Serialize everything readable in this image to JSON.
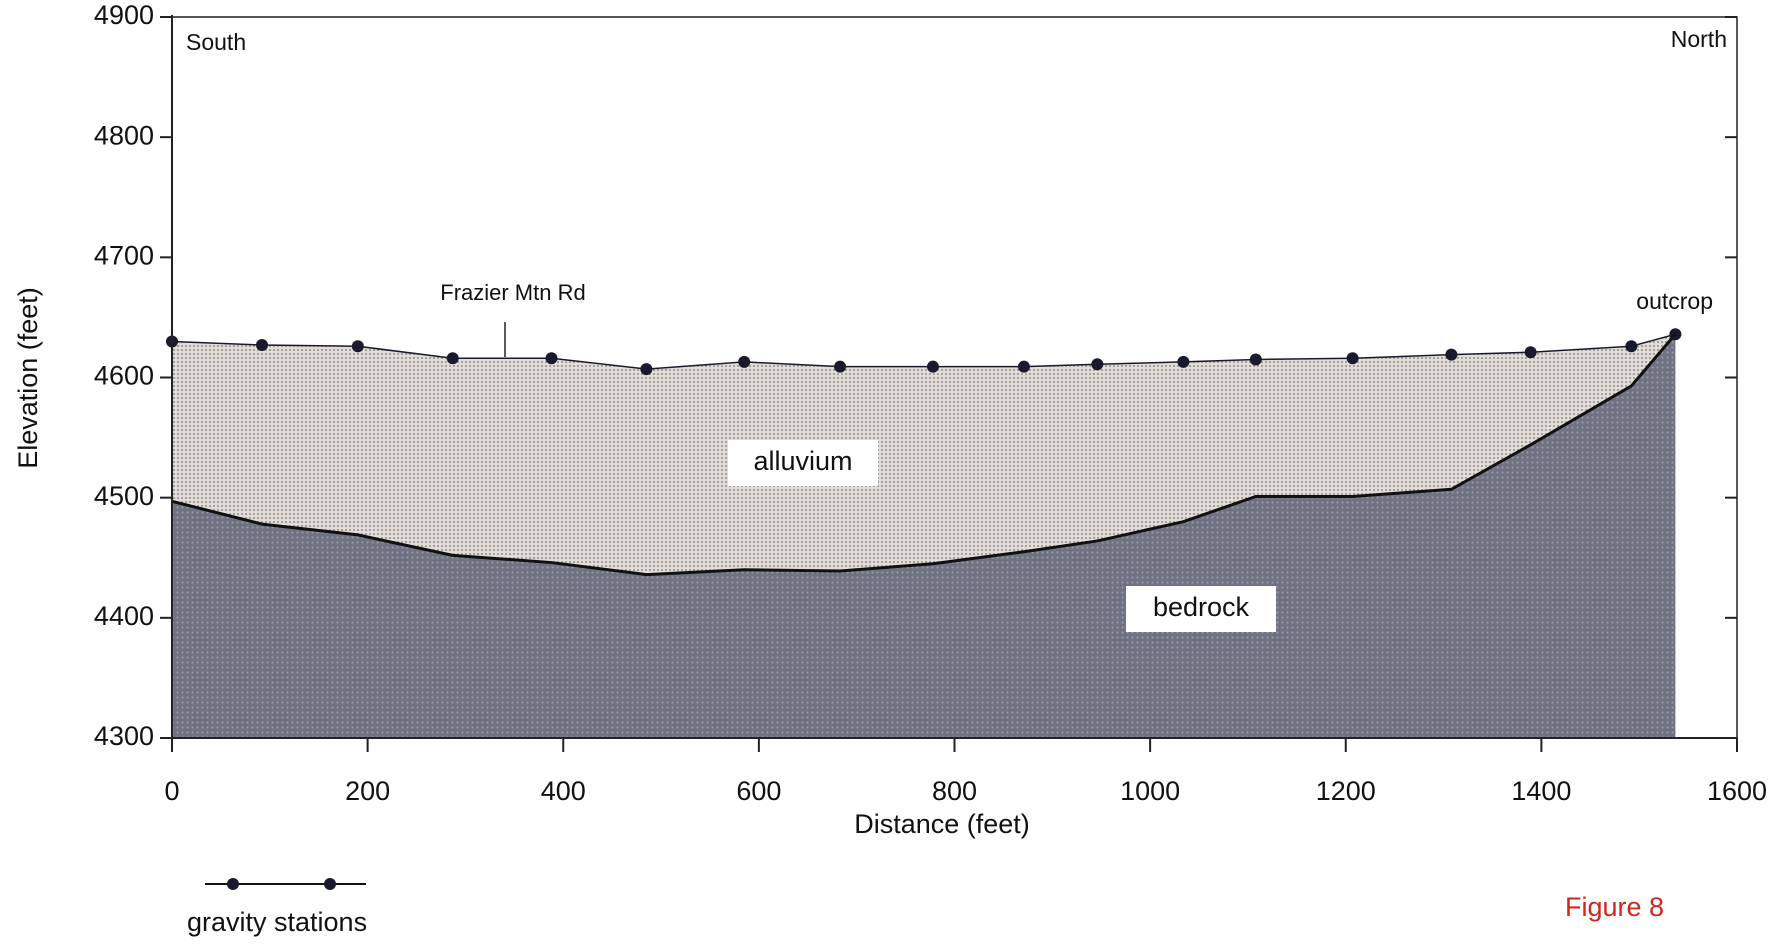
{
  "chart_data": {
    "type": "area",
    "xlabel": "Distance (feet)",
    "ylabel": "Elevation (feet)",
    "x": [
      0,
      92,
      190,
      287,
      388,
      485,
      585,
      683,
      778,
      871,
      946,
      1034,
      1108,
      1207,
      1308,
      1389,
      1492,
      1537
    ],
    "series": [
      {
        "color": "#1a1a2e",
        "fill": "#d9d3cd",
        "markers": true,
        "values": [
          4630,
          4627,
          4626,
          4616,
          4616,
          4607,
          4613,
          4609,
          4609,
          4609,
          4611,
          4613,
          4615,
          4616,
          4619,
          4621,
          4626,
          4636
        ]
      },
      {
        "color": "#111111",
        "fill": "#6d6e7c",
        "values": [
          4497,
          4478,
          4469,
          4452,
          4446,
          4436,
          4440,
          4439,
          4445,
          4455,
          4464,
          4480,
          4501,
          4501,
          4507,
          4544,
          4593,
          4636
        ]
      }
    ],
    "xlim": [
      0,
      1600
    ],
    "xticks": [
      0,
      200,
      400,
      600,
      800,
      1000,
      1200,
      1400,
      1600
    ],
    "ylim": [
      4300,
      4900
    ],
    "yticks": [
      4300,
      4400,
      4500,
      4600,
      4700,
      4800,
      4900
    ],
    "annotations": [
      "South",
      "North",
      "Frazier Mtn Rd",
      "outcrop",
      "alluvium",
      "bedrock"
    ],
    "legend": "gravity stations",
    "figure_label": "Figure 8"
  }
}
